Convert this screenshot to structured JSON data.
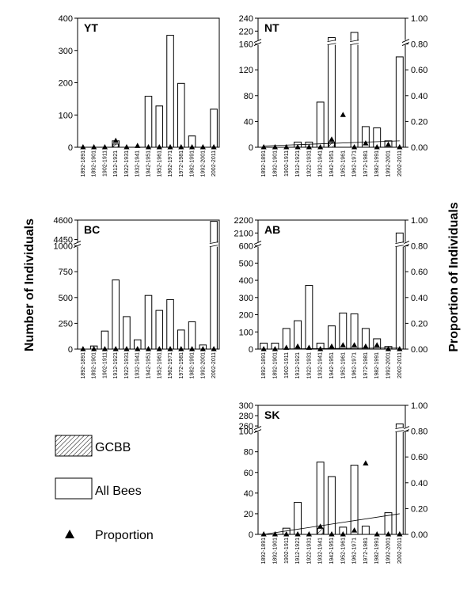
{
  "figure": {
    "y_left_title": "Number of Individuals",
    "y_right_title": "Proportion of Individuals"
  },
  "legend": {
    "items": [
      {
        "key": "gcbb",
        "label": "GCBB",
        "swatch": "hatched-box"
      },
      {
        "key": "all",
        "label": "All Bees",
        "swatch": "open-box"
      },
      {
        "key": "prop",
        "label": "Proportion",
        "swatch": "triangle"
      }
    ]
  },
  "chart_data": [
    {
      "id": "YT",
      "type": "bar",
      "title": "YT",
      "categories": [
        "1892-1891",
        "1892-1901",
        "1902-1911",
        "1912-1921",
        "1922-1931",
        "1932-1941",
        "1942-1951",
        "1952-1961",
        "1962-1971",
        "1972-1981",
        "1982-1991",
        "1992-2001",
        "2002-2011"
      ],
      "series": [
        {
          "key": "all",
          "values": [
            0,
            0,
            0,
            20,
            0,
            0,
            158,
            128,
            347,
            198,
            35,
            0,
            118
          ]
        },
        {
          "key": "gcbb",
          "values": [
            0,
            0,
            0,
            10,
            0,
            0,
            0,
            0,
            0,
            0,
            0,
            0,
            0
          ]
        },
        {
          "key": "prop",
          "values": [
            0,
            0,
            0,
            0.05,
            0,
            0.01,
            0,
            0,
            0,
            0,
            0,
            0,
            0
          ]
        }
      ],
      "y_left": {
        "ticks": [
          {
            "v": 0,
            "label": "0"
          },
          {
            "v": 100,
            "label": "100"
          },
          {
            "v": 200,
            "label": "200"
          },
          {
            "v": 300,
            "label": "300"
          },
          {
            "v": 400,
            "label": "400"
          }
        ],
        "ylim": [
          0,
          400
        ]
      },
      "y_right": null
    },
    {
      "id": "NT",
      "type": "bar",
      "title": "NT",
      "categories": [
        "1892-1891",
        "1892-1901",
        "1902-1911",
        "1912-1921",
        "1922-1931",
        "1932-1941",
        "1942-1951",
        "1952-1961",
        "1962-1971",
        "1972-1981",
        "1982-1991",
        "1992-2001",
        "2002-2011"
      ],
      "series": [
        {
          "key": "all",
          "values": [
            0,
            0,
            0,
            8,
            8,
            70,
            210,
            0,
            218,
            32,
            30,
            10,
            140
          ]
        },
        {
          "key": "gcbb",
          "values": [
            0,
            0,
            0,
            0,
            0,
            0,
            8,
            0,
            0,
            0,
            0,
            0,
            0
          ]
        },
        {
          "key": "prop",
          "values": [
            0,
            0,
            0,
            0,
            0,
            0,
            0.06,
            0.25,
            0,
            0.03,
            0,
            0.02,
            0
          ]
        }
      ],
      "y_left": {
        "ticks": [
          {
            "v": 0,
            "label": "0"
          },
          {
            "v": 40,
            "label": "40"
          },
          {
            "v": 80,
            "label": "80"
          },
          {
            "v": 120,
            "label": "120"
          },
          {
            "v": 160,
            "label": "160"
          },
          {
            "v": 220,
            "label": "220"
          },
          {
            "v": 240,
            "label": "240"
          }
        ],
        "break": [
          160,
          200
        ],
        "ylim": [
          0,
          240
        ]
      },
      "y_right": {
        "ticks": [
          {
            "v": 0,
            "label": "0.00"
          },
          {
            "v": 0.2,
            "label": "0.20"
          },
          {
            "v": 0.4,
            "label": "0.40"
          },
          {
            "v": 0.6,
            "label": "0.60"
          },
          {
            "v": 0.8,
            "label": "0.80"
          },
          {
            "v": 1.0,
            "label": "1.00"
          }
        ],
        "ylim": [
          0,
          1
        ]
      },
      "trendline": {
        "start": 0.01,
        "end": 0.05
      }
    },
    {
      "id": "BC",
      "type": "bar",
      "title": "BC",
      "categories": [
        "1892-1891",
        "1892-1901",
        "1902-1911",
        "1912-1921",
        "1922-1931",
        "1932-1941",
        "1942-1951",
        "1952-1961",
        "1962-1971",
        "1972-1981",
        "1982-1991",
        "1992-2001",
        "2002-2011"
      ],
      "series": [
        {
          "key": "all",
          "values": [
            0,
            30,
            175,
            670,
            315,
            90,
            520,
            375,
            480,
            185,
            265,
            40,
            4590
          ]
        },
        {
          "key": "gcbb",
          "values": [
            0,
            0,
            0,
            0,
            0,
            0,
            0,
            0,
            0,
            0,
            0,
            0,
            0
          ]
        },
        {
          "key": "prop",
          "values": [
            0,
            0,
            0,
            0,
            0,
            0,
            0,
            0,
            0,
            0,
            0,
            0,
            0
          ]
        }
      ],
      "y_left": {
        "ticks": [
          {
            "v": 0,
            "label": "0"
          },
          {
            "v": 250,
            "label": "250"
          },
          {
            "v": 500,
            "label": "500"
          },
          {
            "v": 750,
            "label": "750"
          },
          {
            "v": 1000,
            "label": "1000"
          },
          {
            "v": 4450,
            "label": "4450"
          },
          {
            "v": 4600,
            "label": "4600"
          }
        ],
        "break": [
          1000,
          4400
        ],
        "ylim": [
          0,
          4600
        ]
      },
      "y_right": null
    },
    {
      "id": "AB",
      "type": "bar",
      "title": "AB",
      "categories": [
        "1892-1891",
        "1892-1901",
        "1902-1911",
        "1912-1921",
        "1922-1931",
        "1932-1941",
        "1942-1951",
        "1952-1961",
        "1962-1971",
        "1972-1981",
        "1982-1991",
        "1992-2001",
        "2002-2011"
      ],
      "series": [
        {
          "key": "all",
          "values": [
            35,
            35,
            120,
            165,
            370,
            35,
            135,
            210,
            205,
            120,
            60,
            15,
            2100
          ]
        },
        {
          "key": "gcbb",
          "values": [
            0,
            0,
            0,
            0,
            0,
            0,
            0,
            0,
            0,
            0,
            0,
            0,
            0
          ]
        },
        {
          "key": "prop",
          "values": [
            0,
            0,
            0.01,
            0.02,
            0.01,
            0,
            0.02,
            0.03,
            0.03,
            0.02,
            0.03,
            0,
            0
          ]
        }
      ],
      "y_left": {
        "ticks": [
          {
            "v": 0,
            "label": "0"
          },
          {
            "v": 100,
            "label": "100"
          },
          {
            "v": 200,
            "label": "200"
          },
          {
            "v": 300,
            "label": "300"
          },
          {
            "v": 400,
            "label": "400"
          },
          {
            "v": 500,
            "label": "500"
          },
          {
            "v": 600,
            "label": "600"
          },
          {
            "v": 2100,
            "label": "2100"
          },
          {
            "v": 2200,
            "label": "2200"
          }
        ],
        "break": [
          600,
          2000
        ],
        "ylim": [
          0,
          2200
        ]
      },
      "y_right": {
        "ticks": [
          {
            "v": 0,
            "label": "0.00"
          },
          {
            "v": 0.2,
            "label": "0.20"
          },
          {
            "v": 0.4,
            "label": "0.40"
          },
          {
            "v": 0.6,
            "label": "0.60"
          },
          {
            "v": 0.8,
            "label": "0.80"
          },
          {
            "v": 1.0,
            "label": "1.00"
          }
        ],
        "ylim": [
          0,
          1
        ]
      },
      "trendline": {
        "start": 0.0,
        "end": 0.01
      }
    },
    {
      "id": "SK",
      "type": "bar",
      "title": "SK",
      "categories": [
        "1892-1891",
        "1892-1901",
        "1902-1911",
        "1912-1921",
        "1922-1931",
        "1932-1941",
        "1942-1951",
        "1952-1961",
        "1962-1971",
        "1972-1981",
        "1982-1991",
        "1992-2001",
        "2002-2011"
      ],
      "series": [
        {
          "key": "all",
          "values": [
            0,
            0,
            6,
            31,
            0,
            70,
            56,
            7,
            67,
            8,
            0,
            21,
            264
          ]
        },
        {
          "key": "gcbb",
          "values": [
            0,
            0,
            0,
            0,
            0,
            6,
            0,
            0,
            0,
            0,
            0,
            0,
            0
          ]
        },
        {
          "key": "prop",
          "values": [
            0,
            0,
            0,
            0,
            0,
            0.06,
            0,
            0,
            0.03,
            0.55,
            0,
            0,
            0
          ]
        }
      ],
      "y_left": {
        "ticks": [
          {
            "v": 0,
            "label": "0"
          },
          {
            "v": 20,
            "label": "20"
          },
          {
            "v": 40,
            "label": "40"
          },
          {
            "v": 60,
            "label": "60"
          },
          {
            "v": 80,
            "label": "80"
          },
          {
            "v": 100,
            "label": "100"
          },
          {
            "v": 260,
            "label": "260"
          },
          {
            "v": 280,
            "label": "280"
          },
          {
            "v": 300,
            "label": "300"
          }
        ],
        "break": [
          100,
          250
        ],
        "ylim": [
          0,
          300
        ]
      },
      "y_right": {
        "ticks": [
          {
            "v": 0,
            "label": "0.00"
          },
          {
            "v": 0.2,
            "label": "0.20"
          },
          {
            "v": 0.4,
            "label": "0.40"
          },
          {
            "v": 0.6,
            "label": "0.60"
          },
          {
            "v": 0.8,
            "label": "0.80"
          },
          {
            "v": 1.0,
            "label": "1.00"
          }
        ],
        "ylim": [
          0,
          1
        ]
      },
      "trendline": {
        "start": 0.0,
        "end": 0.16
      }
    }
  ]
}
